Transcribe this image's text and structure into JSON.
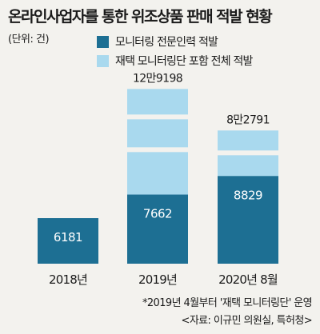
{
  "chart_data": {
    "type": "bar",
    "title": "온라인사업자를 통한 위조상품 판매 적발 현황",
    "unit": "(단위: 건)",
    "categories": [
      "2018년",
      "2019년",
      "2020년 8월"
    ],
    "series": [
      {
        "name": "모니터링 전문인력 적발",
        "values": [
          6181,
          7662,
          8829
        ],
        "color": "#1d6f93"
      },
      {
        "name": "재택 모니터링단 포함 전체 적발",
        "values": [
          null,
          129198,
          82791
        ],
        "color": "#a9d9ee"
      }
    ],
    "data_labels": {
      "specialist": [
        "6181",
        "7662",
        "8829"
      ],
      "total": [
        "",
        "12만9198",
        "8만2791"
      ]
    },
    "grid": false,
    "legend_position": "top-right",
    "footnote": "*2019년 4월부터 '재택 모니터링단' 운영",
    "source": "<자료: 이규민 의원실, 특허청>"
  }
}
